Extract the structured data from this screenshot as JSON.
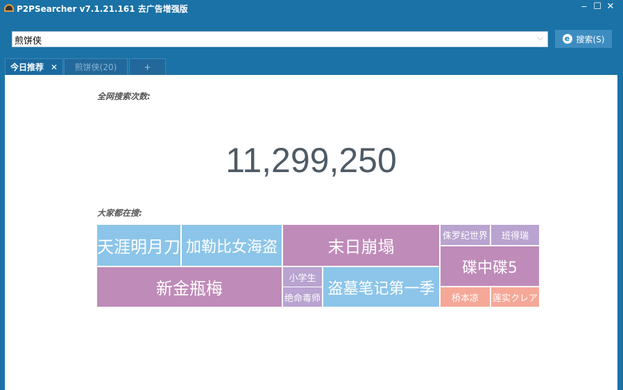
{
  "window": {
    "title": "P2PSearcher v7.1.21.161 去广告增强版",
    "minimize": "‒",
    "maximize": "☐",
    "close": "✕"
  },
  "search": {
    "value": "煎饼侠",
    "button_label": "搜索(S)",
    "icon": "ie-e-icon"
  },
  "tabs": [
    {
      "label": "今日推荐",
      "close": "✕"
    },
    {
      "label": "煎饼侠(20)"
    },
    {
      "label": "+"
    }
  ],
  "main": {
    "total_label": "全网搜索次数:",
    "total_value": "11,299,250",
    "popular_label": "大家都在搜:"
  },
  "colors": {
    "blue": "#8cc5e9",
    "purple": "#bf8bb9",
    "lavender": "#b9a3d0",
    "salmon": "#f5a898"
  },
  "treemap": [
    {
      "label": "天涯明月刀",
      "color": "blue"
    },
    {
      "label": "加勒比女海盗",
      "color": "blue"
    },
    {
      "label": "新金瓶梅",
      "color": "purple"
    },
    {
      "label": "末日崩塌",
      "color": "purple"
    },
    {
      "label": "小学生",
      "color": "lavender"
    },
    {
      "label": "绝命毒师",
      "color": "lavender"
    },
    {
      "label": "盗墓笔记第一季",
      "color": "blue"
    },
    {
      "label": "侏罗纪世界",
      "color": "lavender"
    },
    {
      "label": "班得瑞",
      "color": "lavender"
    },
    {
      "label": "碟中碟5",
      "color": "purple"
    },
    {
      "label": "桥本凉",
      "color": "salmon"
    },
    {
      "label": "莲实クレア",
      "color": "salmon"
    }
  ]
}
